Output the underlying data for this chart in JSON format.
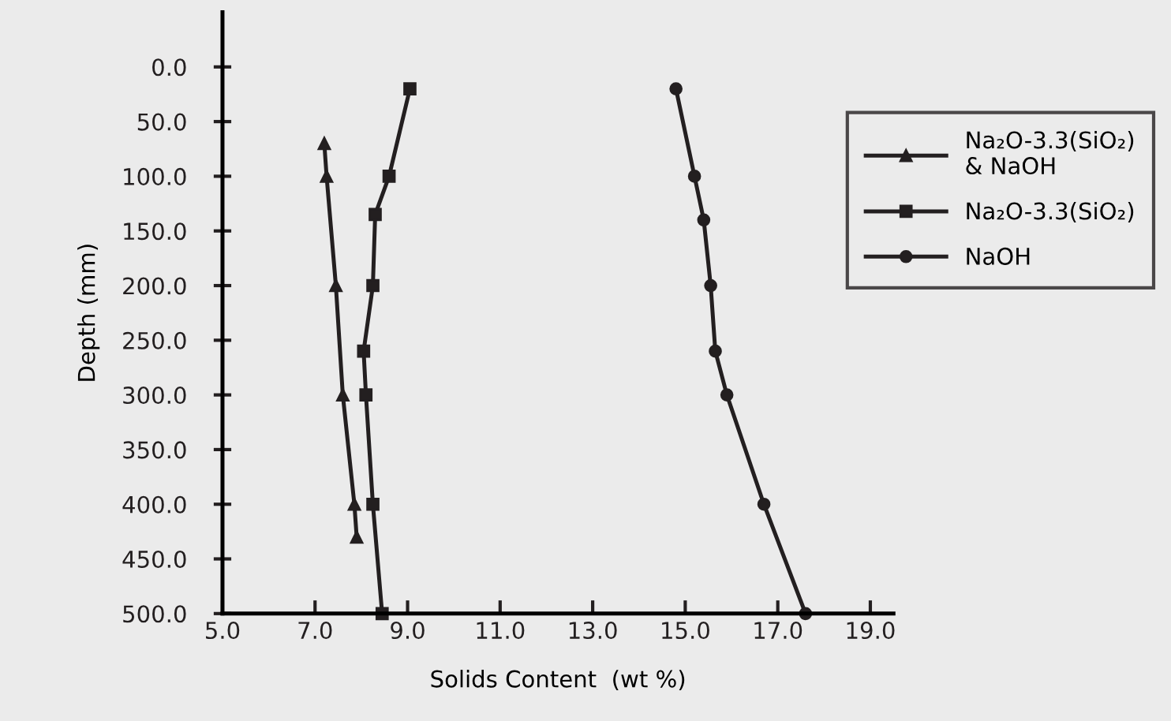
{
  "chart_data": {
    "type": "line",
    "xlabel": "Solids Content  (wt %)",
    "ylabel": "Depth (mm)",
    "xlim": [
      5.0,
      19.5
    ],
    "ylim": [
      500,
      -50
    ],
    "xticks": [
      {
        "value": 5,
        "label": "5.0"
      },
      {
        "value": 7,
        "label": "7.0"
      },
      {
        "value": 9,
        "label": "9.0"
      },
      {
        "value": 11,
        "label": "11.0"
      },
      {
        "value": 13,
        "label": "13.0"
      },
      {
        "value": 15,
        "label": "15.0"
      },
      {
        "value": 17,
        "label": "17.0"
      },
      {
        "value": 19,
        "label": "19.0"
      }
    ],
    "yticks": [
      {
        "value": 0,
        "label": "0.0"
      },
      {
        "value": 50,
        "label": "50.0"
      },
      {
        "value": 100,
        "label": "100.0"
      },
      {
        "value": 150,
        "label": "150.0"
      },
      {
        "value": 200,
        "label": "200.0"
      },
      {
        "value": 250,
        "label": "250.0"
      },
      {
        "value": 300,
        "label": "300.0"
      },
      {
        "value": 350,
        "label": "350.0"
      },
      {
        "value": 400,
        "label": "400.0"
      },
      {
        "value": 450,
        "label": "450.0"
      },
      {
        "value": 500,
        "label": "500.0"
      }
    ],
    "grid": false,
    "legend": "top right",
    "line_style": "solid",
    "series": [
      {
        "name": "Na₂O-3.3(SiO₂)\n& NaOH",
        "color": "#231f20",
        "marker": "triangle",
        "x": [
          7.2,
          7.25,
          7.45,
          7.6,
          7.85,
          7.9
        ],
        "values": [
          70,
          100,
          200,
          300,
          400,
          430
        ]
      },
      {
        "name": "Na₂O-3.3(SiO₂)",
        "color": "#231f20",
        "marker": "square",
        "x": [
          9.05,
          8.6,
          8.3,
          8.25,
          8.05,
          8.1,
          8.25,
          8.45
        ],
        "values": [
          20,
          100,
          135,
          200,
          260,
          300,
          400,
          500
        ]
      },
      {
        "name": "NaOH",
        "color": "#231f20",
        "marker": "circle",
        "x": [
          14.8,
          15.2,
          15.4,
          15.55,
          15.65,
          15.9,
          16.7,
          17.6
        ],
        "values": [
          20,
          100,
          140,
          200,
          260,
          300,
          400,
          500
        ]
      }
    ]
  }
}
